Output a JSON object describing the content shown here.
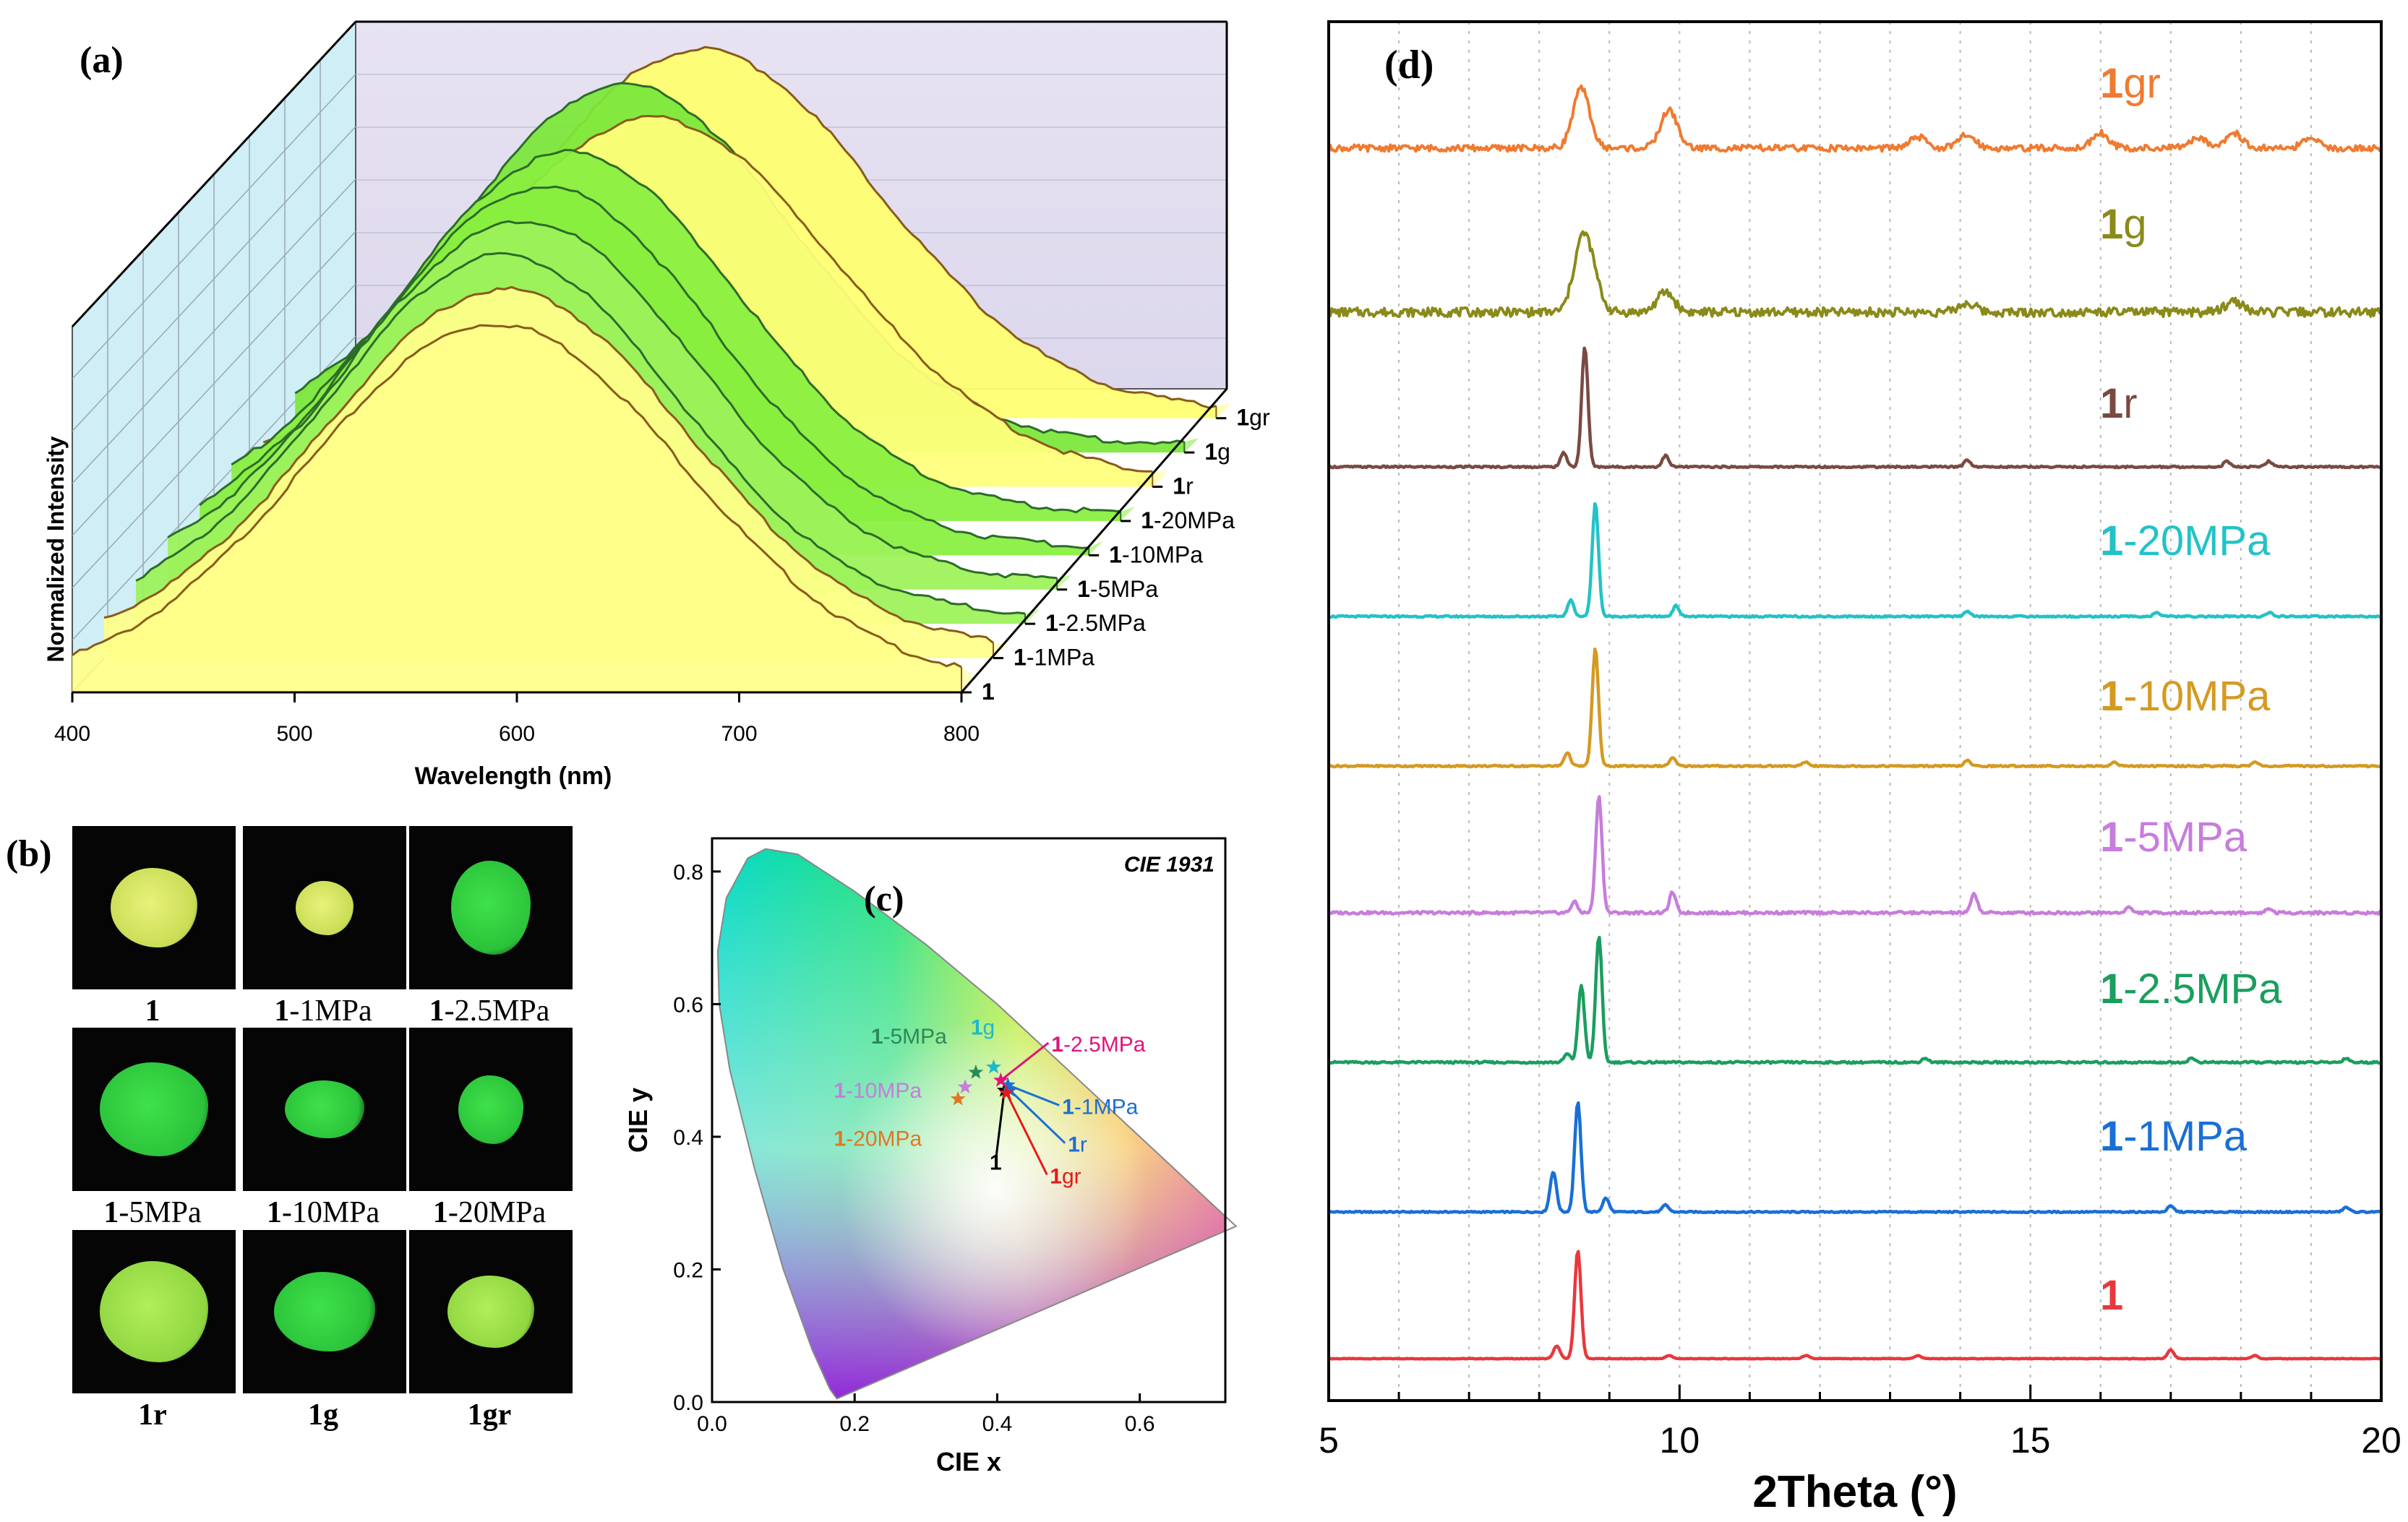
{
  "panel_labels": {
    "a": "(a)",
    "b": "(b)",
    "c": "(c)",
    "d": "(d)"
  },
  "chart_data": [
    {
      "panel": "(a)",
      "type": "line",
      "subtype": "3d-waterfall-area",
      "title": "",
      "xlabel": "Wavelength (nm)",
      "ylabel": "Normalized Intensity",
      "xlim": [
        400,
        800
      ],
      "xticks": [
        "400",
        "500",
        "600",
        "700",
        "800"
      ],
      "series": [
        {
          "name": "1",
          "prefix": "1",
          "suffix": "",
          "peak": 590,
          "width": 85,
          "fill": "#ffff8a",
          "stroke": "#8a5a1a"
        },
        {
          "name": "1-1MPa",
          "prefix": "1",
          "suffix": "-1MPa",
          "peak": 580,
          "width": 82,
          "fill": "#ffff8a",
          "stroke": "#8a5a1a"
        },
        {
          "name": "1-2.5MPa",
          "prefix": "1",
          "suffix": "-2.5MPa",
          "peak": 565,
          "width": 78,
          "fill": "#9cf25a",
          "stroke": "#2d6b2a"
        },
        {
          "name": "1-5MPa",
          "prefix": "1",
          "suffix": "-5MPa",
          "peak": 560,
          "width": 78,
          "fill": "#9cf25a",
          "stroke": "#2d6b2a"
        },
        {
          "name": "1-10MPa",
          "prefix": "1",
          "suffix": "-10MPa",
          "peak": 555,
          "width": 76,
          "fill": "#88ee40",
          "stroke": "#2d6b2a"
        },
        {
          "name": "1-20MPa",
          "prefix": "1",
          "suffix": "-20MPa",
          "peak": 552,
          "width": 76,
          "fill": "#88ee40",
          "stroke": "#2d6b2a"
        },
        {
          "name": "1r",
          "prefix": "1",
          "suffix": "r",
          "peak": 575,
          "width": 82,
          "fill": "#ffff7a",
          "stroke": "#8a5a1a"
        },
        {
          "name": "1g",
          "prefix": "1",
          "suffix": "g",
          "peak": 548,
          "width": 75,
          "fill": "#7be83a",
          "stroke": "#2d6b2a"
        },
        {
          "name": "1gr",
          "prefix": "1",
          "suffix": "gr",
          "peak": 568,
          "width": 80,
          "fill": "#ffff70",
          "stroke": "#8a5a1a"
        }
      ]
    },
    {
      "panel": "(c)",
      "type": "scatter",
      "subtype": "cie-chromaticity",
      "title": "CIE 1931",
      "xlabel": "CIE x",
      "ylabel": "CIE y",
      "xlim": [
        0.0,
        0.72
      ],
      "ylim": [
        0.0,
        0.85
      ],
      "xticks": [
        "0.0",
        "0.2",
        "0.4",
        "0.6"
      ],
      "yticks": [
        "0.0",
        "0.2",
        "0.4",
        "0.6",
        "0.8"
      ],
      "points": [
        {
          "name": "1",
          "prefix": "1",
          "suffix": "",
          "x": 0.41,
          "y": 0.47,
          "color": "#000000"
        },
        {
          "name": "1-1MPa",
          "prefix": "1",
          "suffix": "-1MPa",
          "x": 0.415,
          "y": 0.478,
          "color": "#1a6fd6"
        },
        {
          "name": "1-2.5MPa",
          "prefix": "1",
          "suffix": "-2.5MPa",
          "x": 0.405,
          "y": 0.485,
          "color": "#e0147a"
        },
        {
          "name": "1-5MPa",
          "prefix": "1",
          "suffix": "-5MPa",
          "x": 0.37,
          "y": 0.497,
          "color": "#2b8a5a"
        },
        {
          "name": "1-10MPa",
          "prefix": "1",
          "suffix": "-10MPa",
          "x": 0.355,
          "y": 0.475,
          "color": "#c77ddc"
        },
        {
          "name": "1-20MPa",
          "prefix": "1",
          "suffix": "-20MPa",
          "x": 0.345,
          "y": 0.457,
          "color": "#e07820"
        },
        {
          "name": "1r",
          "prefix": "1",
          "suffix": "r",
          "x": 0.418,
          "y": 0.47,
          "color": "#1a6fd6"
        },
        {
          "name": "1g",
          "prefix": "1",
          "suffix": "g",
          "x": 0.395,
          "y": 0.505,
          "color": "#20b8c8"
        },
        {
          "name": "1gr",
          "prefix": "1",
          "suffix": "gr",
          "x": 0.413,
          "y": 0.466,
          "color": "#e81818"
        }
      ]
    },
    {
      "panel": "(d)",
      "type": "line",
      "subtype": "stacked-pxrd",
      "title": "",
      "xlabel": "2Theta (°)",
      "ylabel": "",
      "xlim": [
        5,
        20
      ],
      "xticks": [
        "5",
        "10",
        "15",
        "20"
      ],
      "series": [
        {
          "name": "1",
          "prefix": "1",
          "suffix": "",
          "color": "#e8383c",
          "noise": 0.3,
          "peaks": [
            [
              8.25,
              12
            ],
            [
              8.55,
              100
            ],
            [
              9.85,
              3
            ],
            [
              11.8,
              3
            ],
            [
              13.4,
              3
            ],
            [
              17.0,
              8
            ],
            [
              18.2,
              3
            ]
          ]
        },
        {
          "name": "1-1MPa",
          "prefix": "1",
          "suffix": "-1MPa",
          "color": "#1a6fd6",
          "noise": 0.6,
          "peaks": [
            [
              8.2,
              35
            ],
            [
              8.55,
              95
            ],
            [
              8.95,
              12
            ],
            [
              9.8,
              6
            ],
            [
              17.0,
              5
            ],
            [
              19.5,
              4
            ]
          ]
        },
        {
          "name": "1-2.5MPa",
          "prefix": "1",
          "suffix": "-2.5MPa",
          "color": "#1a9e5e",
          "noise": 0.7,
          "peaks": [
            [
              8.4,
              6
            ],
            [
              8.6,
              55
            ],
            [
              8.85,
              90
            ],
            [
              13.5,
              3
            ],
            [
              17.3,
              3
            ],
            [
              19.5,
              3
            ]
          ]
        },
        {
          "name": "1-5MPa",
          "prefix": "1",
          "suffix": "-5MPa",
          "color": "#c77ddc",
          "noise": 1.0,
          "peaks": [
            [
              8.5,
              8
            ],
            [
              8.85,
              85
            ],
            [
              9.9,
              15
            ],
            [
              14.2,
              14
            ],
            [
              16.4,
              4
            ],
            [
              18.4,
              3
            ]
          ]
        },
        {
          "name": "1-10MPa",
          "prefix": "1",
          "suffix": "-10MPa",
          "color": "#d49a22",
          "noise": 0.6,
          "peaks": [
            [
              8.4,
              10
            ],
            [
              8.8,
              88
            ],
            [
              9.9,
              6
            ],
            [
              11.8,
              3
            ],
            [
              14.1,
              4
            ],
            [
              16.2,
              3
            ],
            [
              18.2,
              3
            ]
          ]
        },
        {
          "name": "1-20MPa",
          "prefix": "1",
          "suffix": "-20MPa",
          "color": "#22c2c8",
          "noise": 0.6,
          "peaks": [
            [
              8.45,
              12
            ],
            [
              8.8,
              85
            ],
            [
              9.95,
              8
            ],
            [
              14.1,
              4
            ],
            [
              16.8,
              3
            ],
            [
              18.4,
              3
            ]
          ]
        },
        {
          "name": "1r",
          "prefix": "1",
          "suffix": "r",
          "color": "#7a4a42",
          "noise": 0.6,
          "peaks": [
            [
              8.35,
              10
            ],
            [
              8.65,
              85
            ],
            [
              9.8,
              8
            ],
            [
              14.1,
              5
            ],
            [
              17.8,
              4
            ],
            [
              18.4,
              4
            ]
          ]
        },
        {
          "name": "1g",
          "prefix": "1",
          "suffix": "g",
          "color": "#8a8a1a",
          "noise": 4.0,
          "peaks": [
            [
              8.6,
              55
            ],
            [
              8.75,
              28
            ],
            [
              9.8,
              18
            ],
            [
              14.1,
              8
            ],
            [
              17.9,
              10
            ]
          ]
        },
        {
          "name": "1gr",
          "prefix": "1",
          "suffix": "gr",
          "color": "#f07a30",
          "noise": 3.0,
          "peaks": [
            [
              8.6,
              55
            ],
            [
              9.85,
              35
            ],
            [
              13.4,
              10
            ],
            [
              14.1,
              12
            ],
            [
              16.0,
              14
            ],
            [
              17.4,
              10
            ],
            [
              17.9,
              14
            ],
            [
              19.0,
              8
            ]
          ]
        }
      ]
    }
  ],
  "photos": [
    {
      "prefix": "1",
      "suffix": "",
      "tone": "yellow"
    },
    {
      "prefix": "1",
      "suffix": "-1MPa",
      "tone": "yellow"
    },
    {
      "prefix": "1",
      "suffix": "-2.5MPa",
      "tone": "green"
    },
    {
      "prefix": "1",
      "suffix": "-5MPa",
      "tone": "green"
    },
    {
      "prefix": "1",
      "suffix": "-10MPa",
      "tone": "green"
    },
    {
      "prefix": "1",
      "suffix": "-20MPa",
      "tone": "green"
    },
    {
      "prefix": "1",
      "suffix": "r",
      "tone": "yellowgreen"
    },
    {
      "prefix": "1",
      "suffix": "g",
      "tone": "green"
    },
    {
      "prefix": "1",
      "suffix": "gr",
      "tone": "yellowgreen"
    }
  ]
}
